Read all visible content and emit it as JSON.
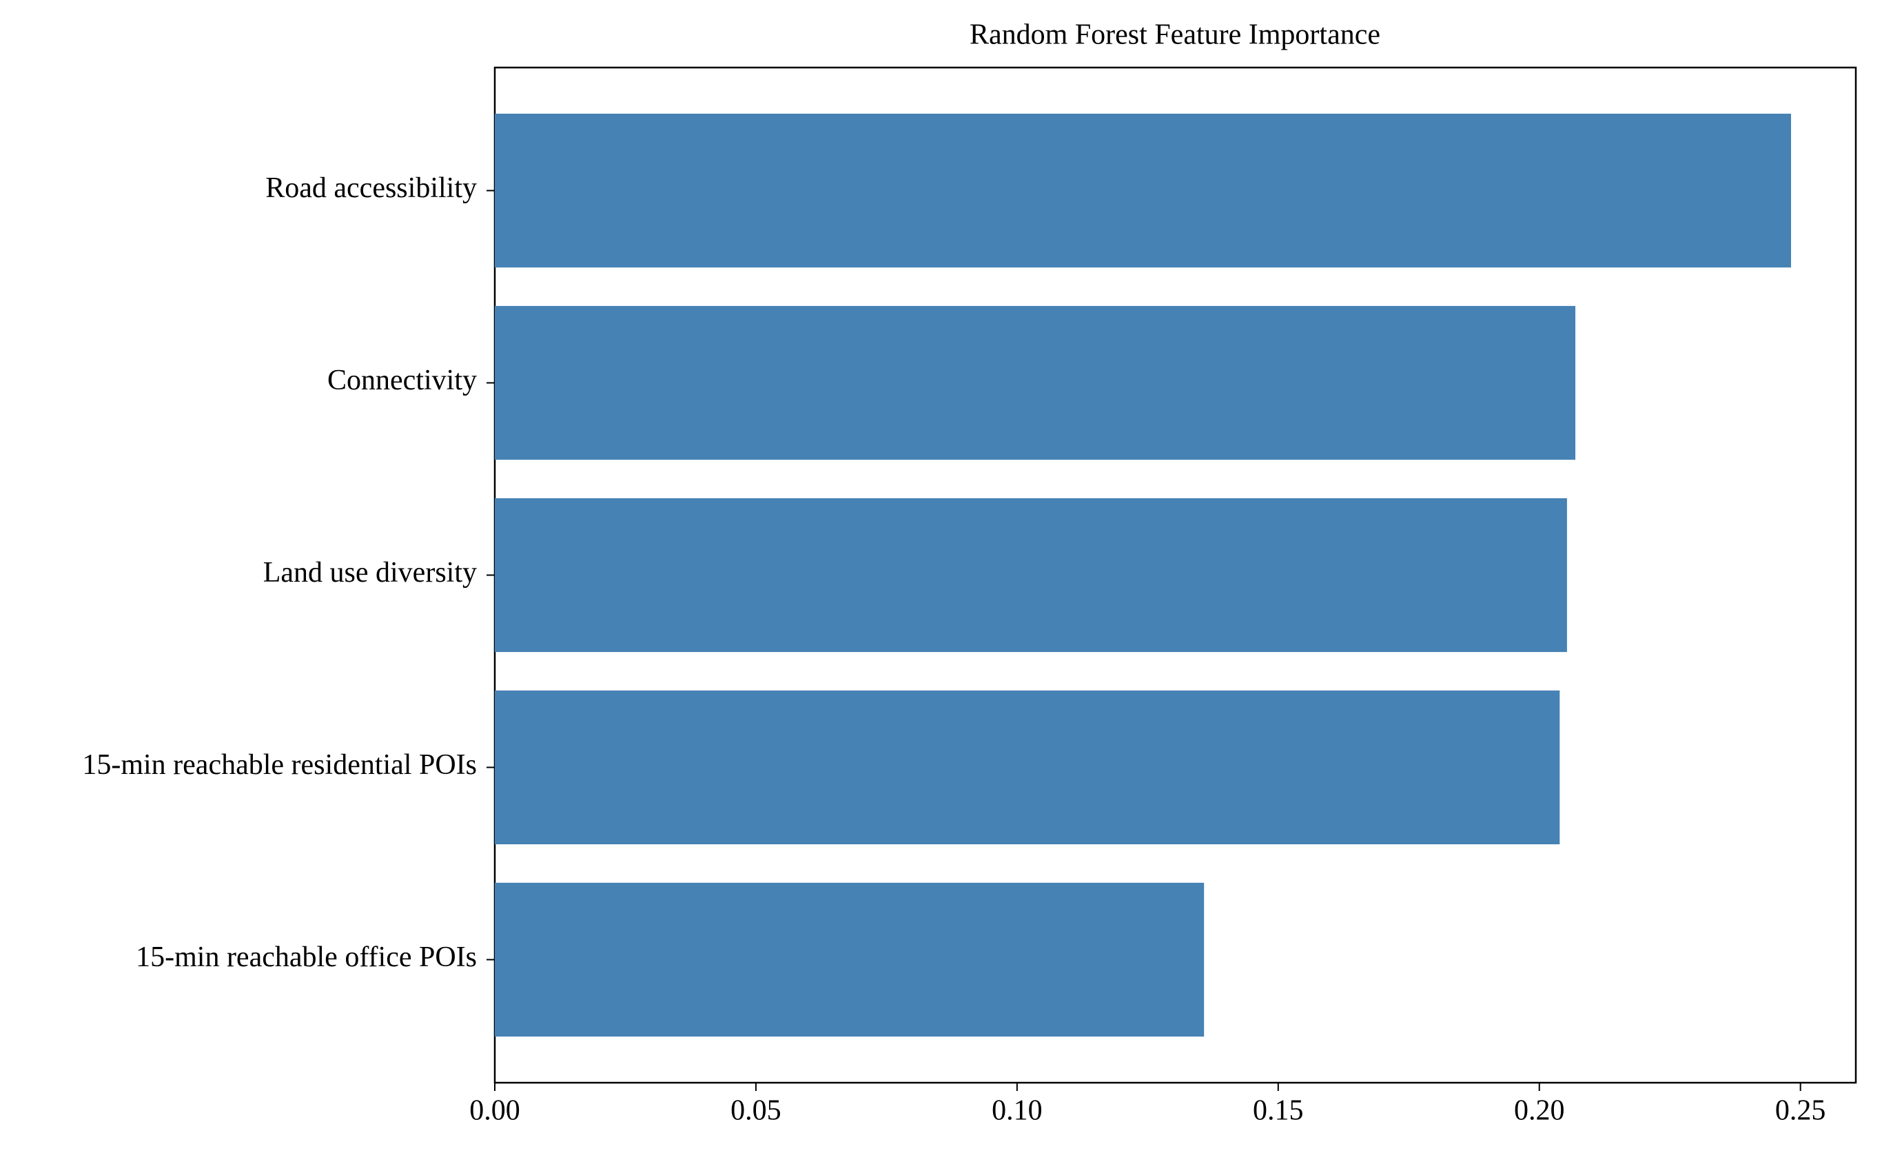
{
  "chart_data": {
    "type": "barh",
    "title": "Random Forest Feature Importance",
    "categories": [
      "Road accessibility",
      "Connectivity",
      "Land use diversity",
      "15-min reachable residential POIs",
      "15-min reachable office POIs"
    ],
    "values": [
      0.2482,
      0.2069,
      0.2053,
      0.2039,
      0.1358
    ],
    "color": "#4682b4",
    "xlim": [
      0,
      0.2606
    ],
    "xticks": [
      {
        "value": 0,
        "label": "0.00"
      },
      {
        "value": 0.05,
        "label": "0.05"
      },
      {
        "value": 0.1,
        "label": "0.10"
      },
      {
        "value": 0.15,
        "label": "0.15"
      },
      {
        "value": 0.2,
        "label": "0.20"
      },
      {
        "value": 0.25,
        "label": "0.25"
      }
    ],
    "grid": false
  }
}
